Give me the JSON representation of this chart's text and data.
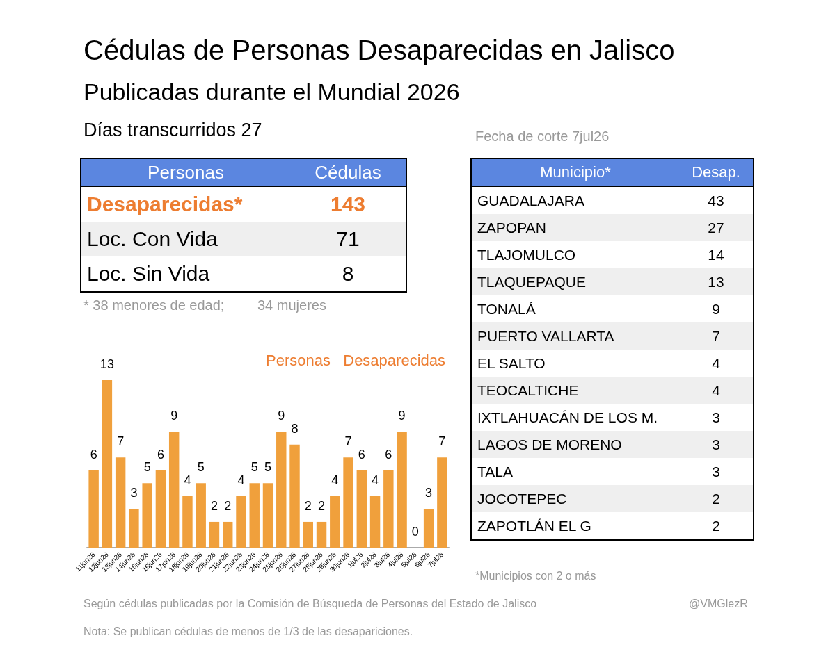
{
  "chart_data": [
    {
      "type": "other",
      "title": "Cédulas de Personas Desaparecidas en Jalisco",
      "subtitle": "Publicadas durante el Mundial 2026",
      "annotations": [
        "Días transcurridos  27",
        "Fecha de corte  7jul26",
        "Según cédulas publicadas por la Comisión de Búsqueda de Personas del Estado de Jalisco",
        "@VMGlezR",
        "Nota: Se publican cédulas de menos de 1/3 de las desapariciones."
      ]
    },
    {
      "type": "other",
      "xlabel": "Personas",
      "ylabel": "Cédulas",
      "categories": [
        "Desaparecidas*",
        "Loc. Con Vida",
        "Loc. Sin Vida"
      ],
      "values": [
        143,
        71,
        8
      ],
      "data_labels": true,
      "annotations": [
        "* 38 menores de edad;",
        "34 mujeres"
      ]
    },
    {
      "type": "other",
      "xlabel": "Municipio*",
      "ylabel": "Desap.",
      "categories": [
        "GUADALAJARA",
        "ZAPOPAN",
        "TLAJOMULCO",
        "TLAQUEPAQUE",
        "TONALÁ",
        "PUERTO VALLARTA",
        "EL SALTO",
        "TEOCALTICHE",
        "IXTLAHUACÁN DE LOS M.",
        "LAGOS DE MORENO",
        "TALA",
        "JOCOTEPEC",
        "ZAPOTLÁN EL G"
      ],
      "values": [
        43,
        27,
        14,
        13,
        9,
        7,
        4,
        4,
        3,
        3,
        3,
        2,
        2
      ],
      "data_labels": true,
      "annotations": [
        "*Municipios con 2 o más"
      ]
    },
    {
      "type": "bar",
      "title": "Personas   Desaparecidas",
      "categories": [
        "11jun26",
        "12jun26",
        "13jun26",
        "14jun26",
        "15jun26",
        "16jun26",
        "17jun26",
        "18jun26",
        "19jun26",
        "20jun26",
        "21jun26",
        "22jun26",
        "23jun26",
        "24jun26",
        "25jun26",
        "26jun26",
        "27jun26",
        "28jun26",
        "29jun26",
        "30jun26",
        "1jul26",
        "2jul26",
        "3jul26",
        "4jul26",
        "5jul26",
        "6jul26",
        "7jul26"
      ],
      "values": [
        6,
        13,
        7,
        3,
        5,
        6,
        9,
        4,
        5,
        2,
        2,
        4,
        5,
        5,
        9,
        8,
        2,
        2,
        4,
        7,
        6,
        4,
        6,
        9,
        0,
        3,
        7
      ],
      "color": "#f0a03c",
      "data_labels": true,
      "grid": false
    }
  ]
}
